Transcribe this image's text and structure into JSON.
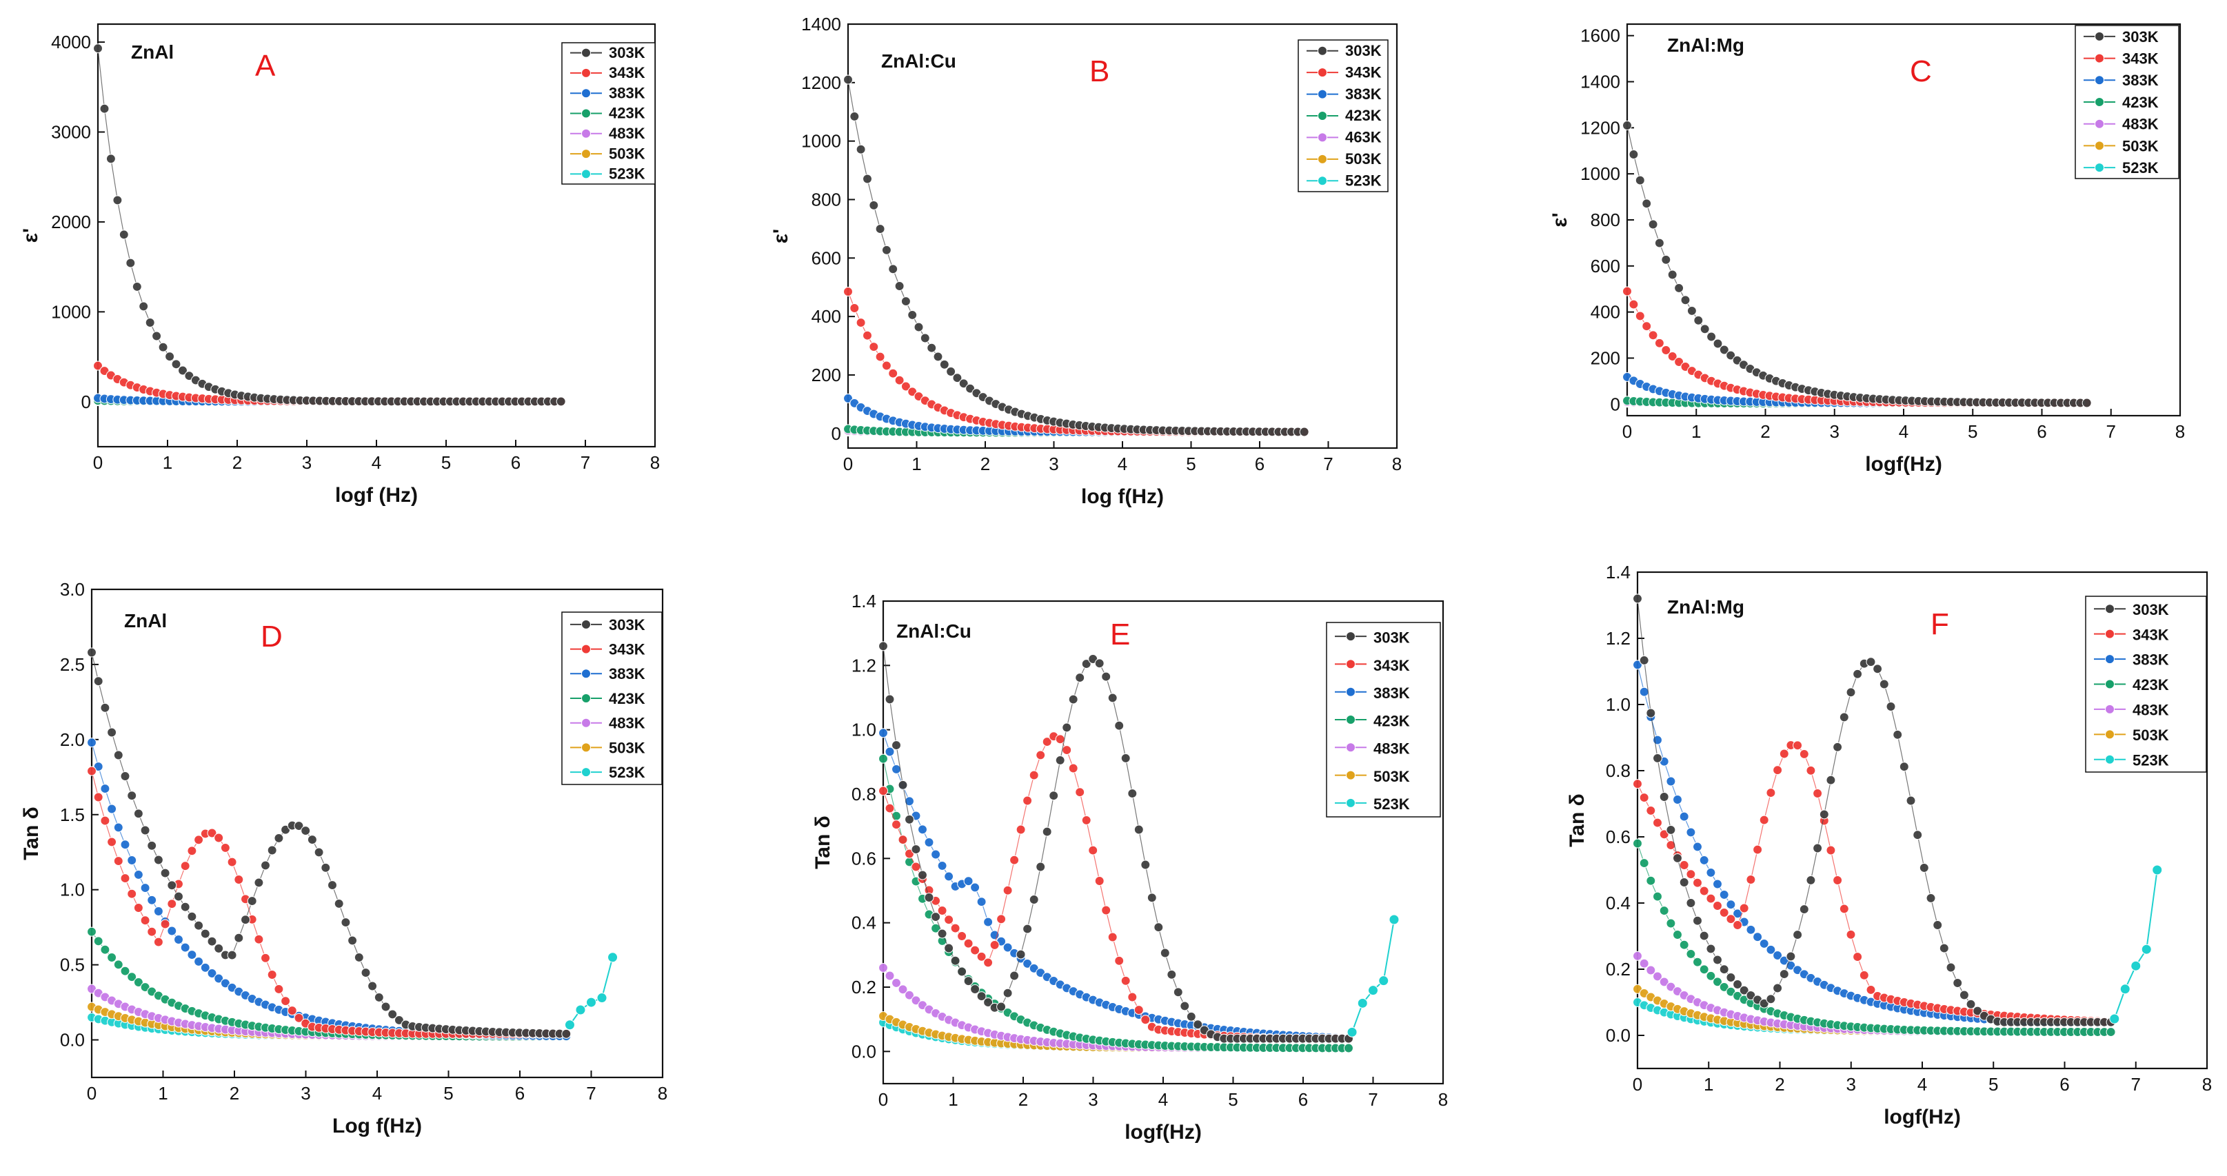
{
  "colors": {
    "303K": "#3f3f3f",
    "343K": "#ef3b36",
    "383K": "#1f6fd1",
    "423K": "#17a06a",
    "463K": "#c77ae8",
    "483K": "#c77ae8",
    "503K": "#e0a21b",
    "523K": "#1fd1cf"
  },
  "chart_data": [
    {
      "panel": "A",
      "type": "scatter",
      "title": "ZnAl",
      "xlabel": "logf (Hz)",
      "ylabel": "ε'",
      "xlim": [
        0,
        8
      ],
      "ylim": [
        -500,
        4200
      ],
      "xticks": [
        "0",
        "1",
        "2",
        "3",
        "4",
        "5",
        "6",
        "7",
        "8"
      ],
      "yticks": [
        "0",
        "1000",
        "2000",
        "3000",
        "4000"
      ],
      "series": [
        {
          "name": "303K",
          "shape": "decay",
          "y0": 3930,
          "tau": 0.5,
          "floor": 3
        },
        {
          "name": "343K",
          "shape": "decay",
          "y0": 400,
          "tau": 0.6,
          "floor": 3
        },
        {
          "name": "383K",
          "shape": "decay",
          "y0": 40,
          "tau": 0.5,
          "floor": 2
        },
        {
          "name": "423K",
          "shape": "decay",
          "y0": 12,
          "tau": 0.5,
          "floor": 2
        },
        {
          "name": "483K",
          "shape": "decay",
          "y0": 8,
          "tau": 0.5,
          "floor": 2
        },
        {
          "name": "503K",
          "shape": "decay",
          "y0": 6,
          "tau": 0.5,
          "floor": 2
        },
        {
          "name": "523K",
          "shape": "decay",
          "y0": 5,
          "tau": 0.5,
          "floor": 2
        }
      ]
    },
    {
      "panel": "B",
      "type": "scatter",
      "title": "ZnAl:Cu",
      "xlabel": "log f(Hz)",
      "ylabel": "ε'",
      "xlim": [
        0,
        8
      ],
      "ylim": [
        -50,
        1400
      ],
      "xticks": [
        "0",
        "1",
        "2",
        "3",
        "4",
        "5",
        "6",
        "7",
        "8"
      ],
      "yticks": [
        "0",
        "200",
        "400",
        "600",
        "800",
        "1000",
        "1200",
        "1400"
      ],
      "series": [
        {
          "name": "303K",
          "shape": "decay",
          "y0": 1210,
          "tau": 0.85,
          "floor": 5
        },
        {
          "name": "343K",
          "shape": "decay",
          "y0": 485,
          "tau": 0.75,
          "floor": 5
        },
        {
          "name": "383K",
          "shape": "decay",
          "y0": 120,
          "tau": 0.6,
          "floor": 5
        },
        {
          "name": "423K",
          "shape": "decay",
          "y0": 15,
          "tau": 0.5,
          "floor": 3
        },
        {
          "name": "463K",
          "shape": "decay",
          "y0": 10,
          "tau": 0.5,
          "floor": 3
        },
        {
          "name": "503K",
          "shape": "decay",
          "y0": 8,
          "tau": 0.5,
          "floor": 3
        },
        {
          "name": "523K",
          "shape": "decay",
          "y0": 6,
          "tau": 0.5,
          "floor": 3
        }
      ]
    },
    {
      "panel": "C",
      "type": "scatter",
      "title": "ZnAl:Mg",
      "xlabel": "logf(Hz)",
      "ylabel": "ε'",
      "xlim": [
        0,
        8
      ],
      "ylim": [
        -50,
        1650
      ],
      "xticks": [
        "0",
        "1",
        "2",
        "3",
        "4",
        "5",
        "6",
        "7",
        "8"
      ],
      "yticks": [
        "0",
        "200",
        "400",
        "600",
        "800",
        "1000",
        "1200",
        "1400",
        "1600"
      ],
      "series": [
        {
          "name": "303K",
          "shape": "decay",
          "y0": 1210,
          "tau": 0.85,
          "floor": 5
        },
        {
          "name": "343K",
          "shape": "decay",
          "y0": 490,
          "tau": 0.75,
          "floor": 5
        },
        {
          "name": "383K",
          "shape": "decay",
          "y0": 118,
          "tau": 0.6,
          "floor": 5
        },
        {
          "name": "423K",
          "shape": "decay",
          "y0": 15,
          "tau": 0.5,
          "floor": 3
        },
        {
          "name": "483K",
          "shape": "decay",
          "y0": 10,
          "tau": 0.5,
          "floor": 3
        },
        {
          "name": "503K",
          "shape": "decay",
          "y0": 8,
          "tau": 0.5,
          "floor": 3
        },
        {
          "name": "523K",
          "shape": "decay",
          "y0": 6,
          "tau": 0.5,
          "floor": 3
        }
      ]
    },
    {
      "panel": "D",
      "type": "scatter",
      "title": "ZnAl",
      "xlabel": "Log f(Hz)",
      "ylabel": "Tan δ",
      "xlim": [
        0,
        8
      ],
      "ylim": [
        -0.25,
        3.0
      ],
      "xticks": [
        "0",
        "1",
        "2",
        "3",
        "4",
        "5",
        "6",
        "7",
        "8"
      ],
      "yticks": [
        "0.0",
        "0.5",
        "1.0",
        "1.5",
        "2.0",
        "2.5",
        "3.0"
      ],
      "series": [
        {
          "name": "303K",
          "shape": "peak",
          "base": 2.55,
          "tau": 1.2,
          "peakH": 1.4,
          "peakX": 2.85,
          "peakW": 0.9
        },
        {
          "name": "343K",
          "shape": "peak",
          "base": 1.76,
          "tau": 0.9,
          "peakH": 1.35,
          "peakX": 1.65,
          "peakW": 0.8
        },
        {
          "name": "383K",
          "shape": "decay",
          "y0": 1.98,
          "tau": 1.1,
          "floor": 0.02
        },
        {
          "name": "423K",
          "shape": "decay",
          "y0": 0.72,
          "tau": 1.0,
          "floor": 0.02
        },
        {
          "name": "483K",
          "shape": "decay",
          "y0": 0.34,
          "tau": 1.0,
          "floor": 0.02
        },
        {
          "name": "503K",
          "shape": "decay",
          "y0": 0.22,
          "tau": 1.0,
          "floor": 0.02
        },
        {
          "name": "523K",
          "shape": "decay",
          "y0": 0.15,
          "tau": 1.0,
          "floor": 0.02
        }
      ],
      "tail": {
        "x": [
          6.7,
          6.85,
          7.0,
          7.15,
          7.3
        ],
        "y": [
          0.1,
          0.2,
          0.25,
          0.28,
          0.55
        ]
      }
    },
    {
      "panel": "E",
      "type": "scatter",
      "title": "ZnAl:Cu",
      "xlabel": "logf(Hz)",
      "ylabel": "Tan δ",
      "xlim": [
        0,
        8
      ],
      "ylim": [
        -0.1,
        1.4
      ],
      "xticks": [
        "0",
        "1",
        "2",
        "3",
        "4",
        "5",
        "6",
        "7",
        "8"
      ],
      "yticks": [
        "0.0",
        "0.2",
        "0.4",
        "0.6",
        "0.8",
        "1.0",
        "1.2",
        "1.4"
      ],
      "series": [
        {
          "name": "303K",
          "shape": "peak",
          "base": 1.23,
          "tau": 0.65,
          "peakH": 1.19,
          "peakX": 3.0,
          "peakW": 0.85
        },
        {
          "name": "343K",
          "shape": "peak",
          "base": 0.78,
          "tau": 1.3,
          "peakH": 0.95,
          "peakX": 2.45,
          "peakW": 0.8
        },
        {
          "name": "383K",
          "shape": "peak",
          "base": 0.96,
          "tau": 1.5,
          "peakH": 0.5,
          "peakX": 1.2,
          "peakW": 0.55
        },
        {
          "name": "423K",
          "shape": "decay",
          "y0": 0.91,
          "tau": 0.85,
          "floor": 0.01
        },
        {
          "name": "483K",
          "shape": "decay",
          "y0": 0.26,
          "tau": 0.9,
          "floor": 0.01
        },
        {
          "name": "503K",
          "shape": "decay",
          "y0": 0.11,
          "tau": 0.9,
          "floor": 0.01
        },
        {
          "name": "523K",
          "shape": "decay",
          "y0": 0.09,
          "tau": 0.9,
          "floor": 0.01
        }
      ],
      "tail": {
        "x": [
          6.7,
          6.85,
          7.0,
          7.15,
          7.3
        ],
        "y": [
          0.06,
          0.15,
          0.19,
          0.22,
          0.41
        ]
      }
    },
    {
      "panel": "F",
      "type": "scatter",
      "title": "ZnAl:Mg",
      "xlabel": "logf(Hz)",
      "ylabel": "Tan δ",
      "xlim": [
        0,
        8
      ],
      "ylim": [
        -0.1,
        1.4
      ],
      "xticks": [
        "0",
        "1",
        "2",
        "3",
        "4",
        "5",
        "6",
        "7",
        "8"
      ],
      "yticks": [
        "0.0",
        "0.2",
        "0.4",
        "0.6",
        "0.8",
        "1.0",
        "1.2",
        "1.4"
      ],
      "series": [
        {
          "name": "303K",
          "shape": "peak",
          "base": 1.29,
          "tau": 0.6,
          "peakH": 1.1,
          "peakX": 3.25,
          "peakW": 0.85
        },
        {
          "name": "343K",
          "shape": "peak",
          "base": 0.73,
          "tau": 1.6,
          "peakH": 0.85,
          "peakX": 2.2,
          "peakW": 0.75
        },
        {
          "name": "383K",
          "shape": "peak",
          "base": 1.09,
          "tau": 1.2,
          "peakH": 0.55,
          "peakX": 0.35,
          "peakW": 0.7
        },
        {
          "name": "423K",
          "shape": "decay",
          "y0": 0.58,
          "tau": 0.85,
          "floor": 0.01
        },
        {
          "name": "483K",
          "shape": "decay",
          "y0": 0.24,
          "tau": 0.9,
          "floor": 0.01
        },
        {
          "name": "503K",
          "shape": "decay",
          "y0": 0.14,
          "tau": 0.9,
          "floor": 0.01
        },
        {
          "name": "523K",
          "shape": "decay",
          "y0": 0.1,
          "tau": 0.9,
          "floor": 0.01
        }
      ],
      "tail": {
        "x": [
          6.7,
          6.85,
          7.0,
          7.15,
          7.3
        ],
        "y": [
          0.05,
          0.14,
          0.21,
          0.26,
          0.5
        ]
      }
    }
  ]
}
